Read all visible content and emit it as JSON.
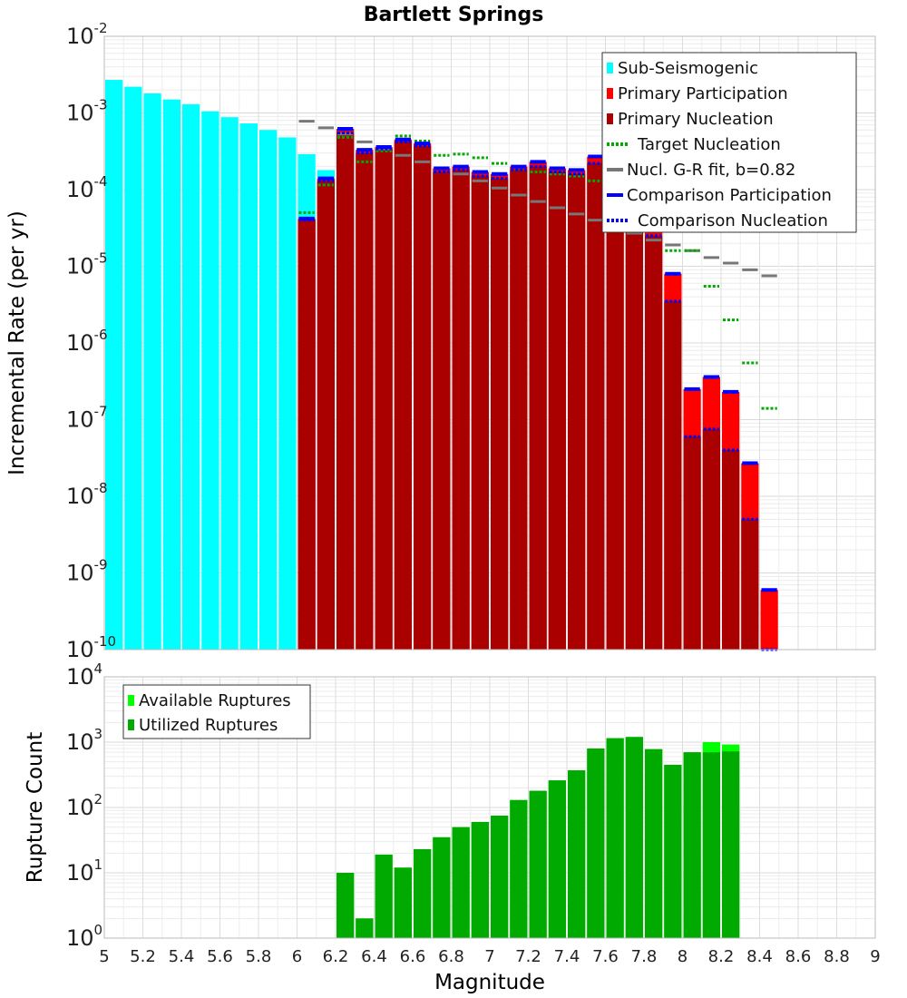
{
  "chart_data": [
    {
      "type": "bar",
      "title": "Bartlett Springs",
      "xlabel": "",
      "ylabel": "Incremental Rate (per yr)",
      "yscale": "log",
      "ylim": [
        1e-10,
        0.01
      ],
      "xlim": [
        5,
        9
      ],
      "bin_width": 0.1,
      "ytick_base": "10",
      "yticks": [
        {
          "exp": "-10",
          "value": 1e-10
        },
        {
          "exp": "-9",
          "value": 1e-09
        },
        {
          "exp": "-8",
          "value": 1e-08
        },
        {
          "exp": "-7",
          "value": 1e-07
        },
        {
          "exp": "-6",
          "value": 1e-06
        },
        {
          "exp": "-5",
          "value": 1e-05
        },
        {
          "exp": "-4",
          "value": 0.0001
        },
        {
          "exp": "-3",
          "value": 0.001
        },
        {
          "exp": "-2",
          "value": 0.01
        }
      ],
      "legend_position": "top-right",
      "legend": [
        {
          "label": "Sub-Seismogenic",
          "color": "#00ffff",
          "style": "box"
        },
        {
          "label": "Primary Participation",
          "color": "#ff0000",
          "style": "box"
        },
        {
          "label": "Primary Nucleation",
          "color": "#aa0000",
          "style": "box"
        },
        {
          "label": "Target Nucleation",
          "color": "#00aa00",
          "style": "dotted"
        },
        {
          "label": "Nucl. G-R fit, b=0.82",
          "color": "#777777",
          "style": "line"
        },
        {
          "label": "Comparison Participation",
          "color": "#0000ff",
          "style": "line"
        },
        {
          "label": "Comparison Nucleation",
          "color": "#0000ff",
          "style": "dotted"
        }
      ],
      "series": [
        {
          "name": "Sub-Seismogenic",
          "color": "#00ffff",
          "x": [
            5.05,
            5.15,
            5.25,
            5.35,
            5.45,
            5.55,
            5.65,
            5.75,
            5.85,
            5.95,
            6.05,
            6.15,
            6.25
          ],
          "values": [
            0.0027,
            0.0022,
            0.0018,
            0.0015,
            0.0013,
            0.00105,
            0.00088,
            0.00073,
            0.0006,
            0.00048,
            0.00029,
            0.00018,
            0.00062
          ]
        },
        {
          "name": "Primary Participation",
          "color": "#ff0000",
          "x": [
            6.05,
            6.15,
            6.25,
            6.35,
            6.45,
            6.55,
            6.65,
            6.75,
            6.85,
            6.95,
            7.05,
            7.15,
            7.25,
            7.35,
            7.45,
            7.55,
            7.65,
            7.75,
            7.85,
            7.95,
            8.05,
            8.15,
            8.25,
            8.35,
            8.45
          ],
          "values": [
            4.2e-05,
            0.00014,
            0.00062,
            0.00033,
            0.00036,
            0.00045,
            0.0004,
            0.00019,
            0.0002,
            0.00017,
            0.00016,
            0.0002,
            0.00023,
            0.00019,
            0.00018,
            0.00027,
            0.00016,
            0.00011,
            5e-05,
            8e-06,
            2.5e-07,
            3.6e-07,
            2.3e-07,
            2.7e-08,
            6e-10
          ]
        },
        {
          "name": "Primary Nucleation",
          "color": "#aa0000",
          "x": [
            6.05,
            6.15,
            6.25,
            6.35,
            6.45,
            6.55,
            6.65,
            6.75,
            6.85,
            6.95,
            7.05,
            7.15,
            7.25,
            7.35,
            7.45,
            7.55,
            7.65,
            7.75,
            7.85,
            7.95,
            8.05,
            8.15,
            8.25,
            8.35,
            8.45
          ],
          "values": [
            4e-05,
            0.00013,
            0.00055,
            0.0003,
            0.00034,
            0.00042,
            0.00037,
            0.00017,
            0.00018,
            0.00015,
            0.00014,
            0.00018,
            0.0002,
            0.00017,
            0.00016,
            0.00022,
            0.00014,
            8e-05,
            2.5e-05,
            3.5e-06,
            6e-08,
            7.5e-08,
            4e-08,
            5e-09,
            1e-10
          ]
        },
        {
          "name": "Target Nucleation",
          "color": "#00aa00",
          "style": "dotted",
          "x": [
            6.05,
            6.15,
            6.25,
            6.35,
            6.45,
            6.55,
            6.65,
            6.75,
            6.85,
            6.95,
            7.05,
            7.15,
            7.25,
            7.35,
            7.45,
            7.55,
            7.65,
            7.75,
            7.85,
            7.95,
            8.05,
            8.15,
            8.25,
            8.35,
            8.45
          ],
          "values": [
            5e-05,
            0.000115,
            0.00048,
            0.00023,
            0.00032,
            0.0005,
            0.00043,
            0.00028,
            0.00029,
            0.00026,
            0.00022,
            0.00018,
            0.00017,
            0.00016,
            0.00015,
            0.00013,
            0.0001,
            6.5e-05,
            3.5e-05,
            1.6e-05,
            1.6e-05,
            5.5e-06,
            2e-06,
            5.5e-07,
            1.4e-07
          ]
        },
        {
          "name": "Nucl. G-R fit, b=0.82",
          "color": "#777777",
          "style": "line",
          "x": [
            6.05,
            6.15,
            6.25,
            6.35,
            6.45,
            6.55,
            6.65,
            6.75,
            6.85,
            6.95,
            7.05,
            7.15,
            7.25,
            7.35,
            7.45,
            7.55,
            7.65,
            7.75,
            7.85,
            7.95,
            8.05,
            8.15,
            8.25,
            8.35,
            8.45
          ],
          "values": [
            0.00078,
            0.00064,
            0.00053,
            0.00042,
            0.00034,
            0.00028,
            0.00023,
            0.00019,
            0.00016,
            0.00013,
            0.000105,
            8.5e-05,
            7e-05,
            5.8e-05,
            4.8e-05,
            4e-05,
            3.3e-05,
            2.7e-05,
            2.2e-05,
            1.9e-05,
            1.6e-05,
            1.3e-05,
            1.1e-05,
            9e-06,
            7.5e-06
          ]
        },
        {
          "name": "Comparison Participation",
          "color": "#0000ff",
          "style": "line",
          "x": [
            6.05,
            6.15,
            6.25,
            6.35,
            6.45,
            6.55,
            6.65,
            6.75,
            6.85,
            6.95,
            7.05,
            7.15,
            7.25,
            7.35,
            7.45,
            7.55,
            7.65,
            7.75,
            7.85,
            7.95,
            8.05,
            8.15,
            8.25,
            8.35,
            8.45
          ],
          "values": [
            4.2e-05,
            0.00014,
            0.00062,
            0.00033,
            0.00036,
            0.00045,
            0.0004,
            0.00019,
            0.0002,
            0.00017,
            0.00016,
            0.0002,
            0.00023,
            0.00019,
            0.00018,
            0.00027,
            0.00016,
            0.00011,
            5e-05,
            8e-06,
            2.5e-07,
            3.6e-07,
            2.3e-07,
            2.7e-08,
            6e-10
          ]
        },
        {
          "name": "Comparison Nucleation",
          "color": "#0000ff",
          "style": "dotted",
          "x": [
            6.05,
            6.15,
            6.25,
            6.35,
            6.45,
            6.55,
            6.65,
            6.75,
            6.85,
            6.95,
            7.05,
            7.15,
            7.25,
            7.35,
            7.45,
            7.55,
            7.65,
            7.75,
            7.85,
            7.95,
            8.05,
            8.15,
            8.25,
            8.35,
            8.45
          ],
          "values": [
            4e-05,
            0.00013,
            0.00055,
            0.0003,
            0.00034,
            0.00042,
            0.00037,
            0.00017,
            0.00018,
            0.00015,
            0.00014,
            0.00018,
            0.0002,
            0.00017,
            0.00016,
            0.00022,
            0.00014,
            8e-05,
            2.5e-05,
            3.5e-06,
            6e-08,
            7.5e-08,
            4e-08,
            5e-09,
            1e-10
          ]
        }
      ]
    },
    {
      "type": "bar",
      "title": "",
      "xlabel": "Magnitude",
      "ylabel": "Rupture Count",
      "yscale": "log",
      "ylim": [
        1,
        10000
      ],
      "xlim": [
        5,
        9
      ],
      "bin_width": 0.1,
      "xticks": [
        "5",
        "5.2",
        "5.4",
        "5.6",
        "5.8",
        "6",
        "6.2",
        "6.4",
        "6.6",
        "6.8",
        "7",
        "7.2",
        "7.4",
        "7.6",
        "7.8",
        "8",
        "8.2",
        "8.4",
        "8.6",
        "8.8",
        "9"
      ],
      "xtick_values": [
        5,
        5.2,
        5.4,
        5.6,
        5.8,
        6,
        6.2,
        6.4,
        6.6,
        6.8,
        7,
        7.2,
        7.4,
        7.6,
        7.8,
        8,
        8.2,
        8.4,
        8.6,
        8.8,
        9
      ],
      "ytick_base": "10",
      "yticks": [
        {
          "exp": "0",
          "value": 1
        },
        {
          "exp": "1",
          "value": 10
        },
        {
          "exp": "2",
          "value": 100
        },
        {
          "exp": "3",
          "value": 1000
        },
        {
          "exp": "4",
          "value": 10000
        }
      ],
      "legend_position": "top-left",
      "legend": [
        {
          "label": "Available Ruptures",
          "color": "#00ff00",
          "style": "box"
        },
        {
          "label": "Utilized Ruptures",
          "color": "#00aa00",
          "style": "box"
        }
      ],
      "series": [
        {
          "name": "Available Ruptures",
          "color": "#00ff00",
          "x": [
            6.25,
            6.35,
            6.45,
            6.55,
            6.65,
            6.75,
            6.85,
            6.95,
            7.05,
            7.15,
            7.25,
            7.35,
            7.45,
            7.55,
            7.65,
            7.75,
            7.85,
            7.95,
            8.05,
            8.15,
            8.25
          ],
          "values": [
            10,
            2,
            19,
            12,
            23,
            35,
            50,
            60,
            75,
            130,
            180,
            260,
            370,
            800,
            1150,
            1200,
            780,
            450,
            700,
            1000,
            920
          ]
        },
        {
          "name": "Utilized Ruptures",
          "color": "#00aa00",
          "x": [
            6.25,
            6.35,
            6.45,
            6.55,
            6.65,
            6.75,
            6.85,
            6.95,
            7.05,
            7.15,
            7.25,
            7.35,
            7.45,
            7.55,
            7.65,
            7.75,
            7.85,
            7.95,
            8.05,
            8.15,
            8.25
          ],
          "values": [
            10,
            2,
            19,
            12,
            23,
            35,
            50,
            60,
            75,
            130,
            180,
            260,
            370,
            800,
            1150,
            1200,
            780,
            450,
            700,
            700,
            720
          ]
        }
      ]
    }
  ]
}
